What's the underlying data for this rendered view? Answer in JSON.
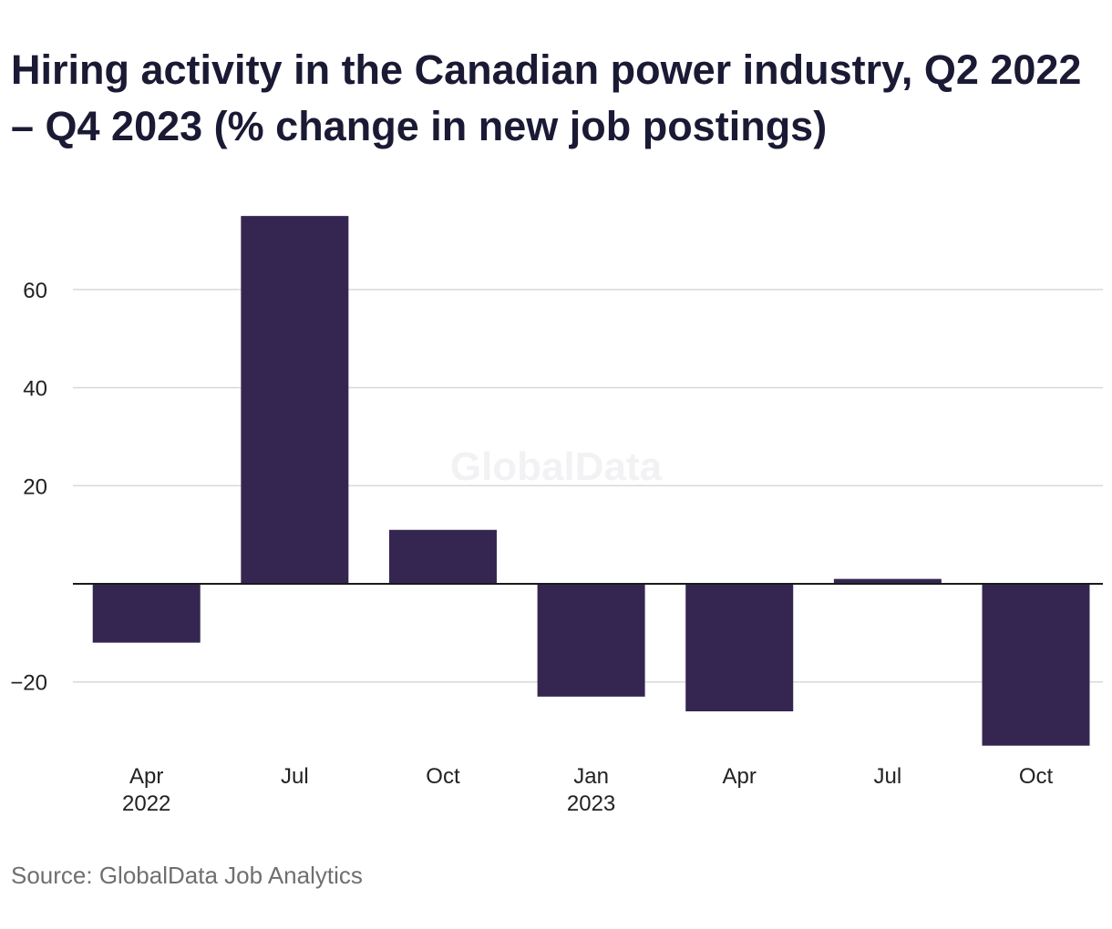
{
  "chart_data": {
    "type": "bar",
    "title": "Hiring activity in the Canadian power industry, Q2 2022 – Q4 2023 (% change in new job postings)",
    "categories": [
      "Apr 2022",
      "Jul",
      "Oct",
      "Jan 2023",
      "Apr",
      "Jul",
      "Oct"
    ],
    "tick_labels": [
      [
        "Apr",
        "2022"
      ],
      [
        "Jul"
      ],
      [
        "Oct"
      ],
      [
        "Jan",
        "2023"
      ],
      [
        "Apr"
      ],
      [
        "Jul"
      ],
      [
        "Oct"
      ]
    ],
    "values": [
      -12,
      75,
      11,
      -23,
      -26,
      1,
      -33
    ],
    "ylim": [
      -33,
      75
    ],
    "yticks": [
      -20,
      20,
      40,
      60
    ],
    "ytick_labels": [
      "−20",
      "20",
      "40",
      "60"
    ],
    "grid": true,
    "xlabel": "",
    "ylabel": "",
    "bar_color": "#352651",
    "watermark": "GlobalData",
    "source": "Source: GlobalData Job Analytics"
  }
}
